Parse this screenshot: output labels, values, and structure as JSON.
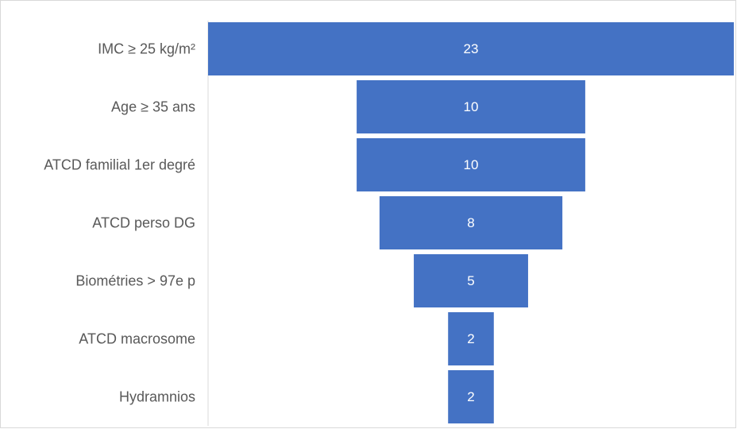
{
  "chart_data": {
    "type": "bar",
    "subtype": "funnel",
    "categories": [
      "IMC ≥ 25 kg/m²",
      "Age ≥ 35 ans",
      "ATCD familial 1er degré",
      "ATCD perso DG",
      "Biométries > 97e p",
      "ATCD macrosome",
      "Hydramnios"
    ],
    "values": [
      23,
      10,
      10,
      8,
      5,
      2,
      2
    ],
    "title": "",
    "xlabel": "",
    "ylabel": "",
    "legend": "none",
    "grid": false,
    "colors": {
      "bar": "#4472C4",
      "label": "#595959",
      "value_label": "#FFFFFF",
      "axis": "#D9D9D9"
    }
  }
}
